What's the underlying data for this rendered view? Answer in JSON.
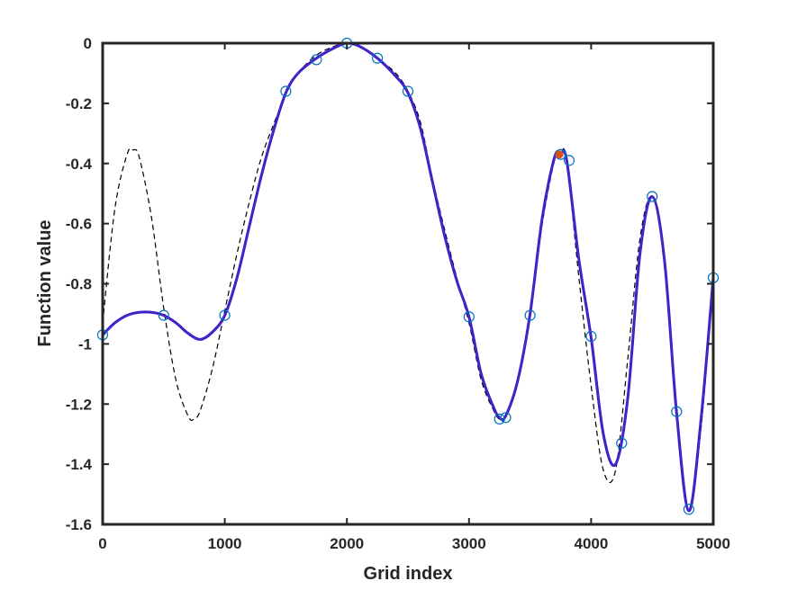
{
  "chart_data": {
    "type": "line",
    "title": "",
    "xlabel": "Grid index",
    "ylabel": "Function value",
    "xlim": [
      0,
      5000
    ],
    "ylim": [
      -1.6,
      0
    ],
    "xticks": [
      0,
      1000,
      2000,
      3000,
      4000,
      5000
    ],
    "yticks": [
      -1.6,
      -1.4,
      -1.2,
      -1,
      -0.8,
      -0.6,
      -0.4,
      -0.2,
      0
    ],
    "xtick_labels": [
      "0",
      "1000",
      "2000",
      "3000",
      "4000",
      "5000"
    ],
    "ytick_labels": [
      "-1.6",
      "-1.4",
      "-1.2",
      "-1",
      "-0.8",
      "-0.6",
      "-0.4",
      "-0.2",
      "0"
    ],
    "grid": false,
    "legend": "none",
    "colors": {
      "fit_curve": "#1f1fe6",
      "fit_curve_overlay": "#c0205a",
      "reference_dashed": "#000000",
      "samples": "#0072bd",
      "highlight": "#d95319",
      "axes": "#262626"
    },
    "series": [
      {
        "style": "dashed-black",
        "x": [
          0,
          100,
          200,
          250,
          300,
          400,
          500,
          600,
          700,
          750,
          800,
          900,
          1000,
          1100,
          1200,
          1300,
          1400,
          1500,
          1600,
          1750,
          1900,
          2000,
          2100,
          2250,
          2400,
          2500,
          2600,
          2700,
          2800,
          2900,
          3000,
          3100,
          3200,
          3250,
          3300,
          3400,
          3500,
          3600,
          3700,
          3750,
          3800,
          3900,
          4000,
          4100,
          4200,
          4300,
          4400,
          4500,
          4600,
          4700,
          4800,
          4900,
          5000
        ],
        "y": [
          -0.93,
          -0.55,
          -0.37,
          -0.355,
          -0.38,
          -0.58,
          -0.88,
          -1.12,
          -1.24,
          -1.25,
          -1.22,
          -1.08,
          -0.89,
          -0.7,
          -0.53,
          -0.38,
          -0.27,
          -0.17,
          -0.1,
          -0.04,
          -0.01,
          0,
          -0.01,
          -0.05,
          -0.1,
          -0.16,
          -0.26,
          -0.45,
          -0.62,
          -0.78,
          -0.93,
          -1.12,
          -1.22,
          -1.25,
          -1.24,
          -1.12,
          -0.9,
          -0.6,
          -0.39,
          -0.365,
          -0.39,
          -0.78,
          -1.14,
          -1.42,
          -1.42,
          -1.05,
          -0.65,
          -0.51,
          -0.71,
          -1.22,
          -1.555,
          -1.28,
          -0.79
        ]
      },
      {
        "style": "solid-blue",
        "x": [
          0,
          100,
          200,
          300,
          400,
          500,
          600,
          700,
          800,
          900,
          1000,
          1100,
          1200,
          1300,
          1400,
          1500,
          1600,
          1750,
          1900,
          2000,
          2100,
          2250,
          2400,
          2500,
          2600,
          2700,
          2800,
          2900,
          3000,
          3100,
          3200,
          3250,
          3300,
          3400,
          3500,
          3600,
          3700,
          3750,
          3800,
          3900,
          4000,
          4100,
          4200,
          4300,
          4400,
          4500,
          4600,
          4700,
          4800,
          4900,
          5000
        ],
        "y": [
          -0.97,
          -0.93,
          -0.905,
          -0.895,
          -0.895,
          -0.905,
          -0.93,
          -0.965,
          -0.985,
          -0.96,
          -0.905,
          -0.78,
          -0.61,
          -0.44,
          -0.29,
          -0.165,
          -0.1,
          -0.05,
          -0.015,
          0,
          -0.01,
          -0.05,
          -0.11,
          -0.165,
          -0.28,
          -0.46,
          -0.64,
          -0.79,
          -0.91,
          -1.1,
          -1.21,
          -1.245,
          -1.24,
          -1.12,
          -0.9,
          -0.58,
          -0.38,
          -0.368,
          -0.39,
          -0.72,
          -0.98,
          -1.3,
          -1.4,
          -1.18,
          -0.7,
          -0.51,
          -0.72,
          -1.23,
          -1.555,
          -1.25,
          -0.78
        ]
      },
      {
        "style": "circle-markers",
        "x": [
          0,
          500,
          1000,
          1500,
          1750,
          2000,
          2250,
          2500,
          3000,
          3250,
          3300,
          3500,
          3750,
          3820,
          4000,
          4250,
          4500,
          4700,
          4800,
          5000
        ],
        "y": [
          -0.97,
          -0.905,
          -0.905,
          -0.16,
          -0.055,
          0,
          -0.05,
          -0.16,
          -0.91,
          -1.25,
          -1.245,
          -0.905,
          -0.37,
          -0.39,
          -0.975,
          -1.33,
          -0.51,
          -1.225,
          -1.55,
          -0.78
        ]
      },
      {
        "style": "filled-highlight",
        "x": [
          3740
        ],
        "y": [
          -0.37
        ]
      }
    ]
  }
}
